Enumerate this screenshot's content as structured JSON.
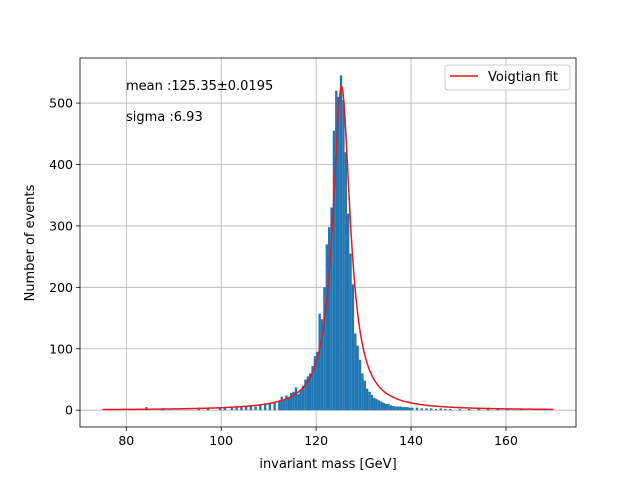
{
  "chart_data": {
    "type": "bar",
    "xlabel": "invariant mass [GeV]",
    "ylabel": "Number of events",
    "xlim": [
      70.25,
      174.75
    ],
    "ylim": [
      -27.4,
      573.4
    ],
    "xticks": [
      80,
      100,
      120,
      140,
      160
    ],
    "yticks": [
      0,
      100,
      200,
      300,
      400,
      500
    ],
    "grid": true,
    "bar_color": "#1f77b4",
    "fit_color": "#e41a1c",
    "annotations": [
      "mean :125.35±0.0195",
      "sigma :6.93"
    ],
    "legend": {
      "entries": [
        "Voigtian fit"
      ],
      "placement": "top-right"
    },
    "histogram": {
      "bin_centers": [
        84.25,
        87.75,
        95.25,
        97.25,
        99.75,
        100.75,
        102.25,
        103.25,
        104.25,
        105.25,
        106.25,
        107.25,
        108.25,
        109.25,
        110.25,
        111.25,
        112.25,
        112.75,
        113.25,
        113.75,
        114.25,
        114.75,
        115.25,
        115.75,
        116.25,
        116.75,
        117.25,
        117.75,
        118.25,
        118.75,
        119.25,
        119.75,
        120.25,
        120.75,
        121.25,
        121.75,
        122.25,
        122.75,
        123.25,
        123.75,
        124.25,
        124.75,
        125.25,
        125.75,
        126.25,
        126.75,
        127.25,
        127.75,
        128.25,
        128.75,
        129.25,
        129.75,
        130.25,
        130.75,
        131.25,
        131.75,
        132.25,
        132.75,
        133.25,
        133.75,
        134.25,
        134.75,
        135.25,
        135.75,
        136.25,
        136.75,
        137.25,
        137.75,
        138.25,
        138.75,
        139.25,
        139.75,
        140.25,
        141.25,
        142.25,
        143.25,
        144.25,
        145.25,
        146.25,
        147.25,
        148.25,
        150.25,
        152.25,
        154.25,
        156.25,
        158.25,
        160.25,
        163.25,
        166.25,
        168.25
      ],
      "counts": [
        5,
        3,
        4,
        3,
        3,
        4,
        5,
        6,
        5,
        7,
        8,
        6,
        10,
        11,
        12,
        14,
        16,
        22,
        18,
        24,
        20,
        28,
        30,
        37,
        26,
        33,
        40,
        50,
        55,
        60,
        72,
        88,
        95,
        157,
        148,
        200,
        270,
        298,
        330,
        455,
        520,
        510,
        545,
        505,
        420,
        320,
        255,
        205,
        125,
        105,
        82,
        60,
        48,
        35,
        30,
        25,
        20,
        18,
        16,
        14,
        12,
        10,
        10,
        8,
        7,
        6,
        6,
        6,
        5,
        5,
        5,
        4,
        4,
        4,
        3,
        3,
        3,
        2,
        3,
        2,
        2,
        2,
        2,
        2,
        4,
        2,
        2,
        2,
        2,
        2
      ]
    },
    "fit": {
      "name": "Voigtian fit",
      "x_range": [
        75,
        170
      ],
      "mean": 125.35,
      "peak": 527,
      "gamma": 2.22
    }
  }
}
